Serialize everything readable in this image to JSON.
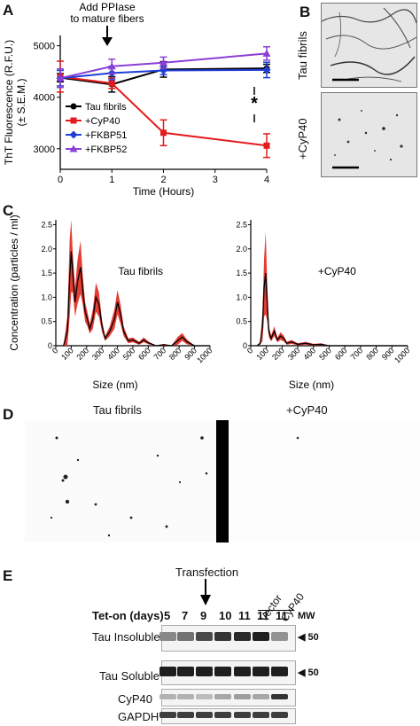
{
  "panels": {
    "A": "A",
    "B": "B",
    "C": "C",
    "D": "D",
    "E": "E"
  },
  "panelA": {
    "annotation": {
      "line1": "Add PPIase",
      "line2": "to mature fibers"
    },
    "asterisk": "*"
  },
  "panelB": {
    "labels": [
      "Tau fibrils",
      "+CyP40"
    ]
  },
  "panelD": {
    "labels": [
      "Tau fibrils",
      "+CyP40"
    ]
  },
  "panelE": {
    "transfection": "Transfection",
    "tet_on_label": "Tet-on (days)",
    "days": [
      "5",
      "7",
      "9",
      "10",
      "11",
      "11",
      "11"
    ],
    "vector_label": "Vector",
    "cyp40_label": "CyP40",
    "mw_label": "MW",
    "rows": [
      "Tau Insoluble",
      "Tau Soluble",
      "CyP40",
      "GAPDH"
    ],
    "mw_markers": [
      "50",
      "50"
    ],
    "band_intensity": {
      "tau_insoluble": [
        0.45,
        0.55,
        0.75,
        0.85,
        0.9,
        0.95,
        0.4
      ],
      "tau_soluble": [
        0.95,
        0.95,
        0.95,
        0.95,
        0.95,
        0.95,
        0.95
      ],
      "cyp40": [
        0.25,
        0.25,
        0.2,
        0.3,
        0.35,
        0.3,
        0.85
      ],
      "gapdh": [
        0.8,
        0.8,
        0.8,
        0.8,
        0.8,
        0.8,
        0.8
      ]
    }
  },
  "chart_data": [
    {
      "type": "line",
      "panel": "A",
      "xlabel": "Time (Hours)",
      "ylabel_line1": "ThT Fluorescence (R.F.U.)",
      "ylabel_line2": "(± S.E.M.)",
      "xlim": [
        0,
        4
      ],
      "ylim": [
        2600,
        5200
      ],
      "xticks": [
        0,
        1,
        2,
        3,
        4
      ],
      "yticks": [
        3000,
        4000,
        5000
      ],
      "legend_position": "bottom-left",
      "series": [
        {
          "name": "Tau fibrils",
          "color": "#000000",
          "marker": "circle",
          "x": [
            0,
            1,
            2,
            4
          ],
          "y": [
            4380,
            4250,
            4540,
            4560
          ],
          "err": [
            80,
            150,
            150,
            80
          ]
        },
        {
          "name": "+CyP40",
          "color": "#e41a1c",
          "marker": "square",
          "x": [
            0,
            1,
            2,
            4
          ],
          "y": [
            4400,
            4270,
            3310,
            3060
          ],
          "err": [
            300,
            100,
            250,
            230
          ]
        },
        {
          "name": "+FKBP51",
          "color": "#1f3fd6",
          "marker": "diamond",
          "x": [
            0,
            1,
            2,
            4
          ],
          "y": [
            4370,
            4470,
            4520,
            4530
          ],
          "err": [
            150,
            130,
            80,
            150
          ]
        },
        {
          "name": "+FKBP52",
          "color": "#8a3fd6",
          "marker": "triangle",
          "x": [
            0,
            1,
            2,
            4
          ],
          "y": [
            4370,
            4600,
            4670,
            4850
          ],
          "err": [
            180,
            140,
            110,
            130
          ]
        }
      ]
    },
    {
      "type": "area",
      "panel": "C-left",
      "title": "Tau fibrils",
      "ylabel": "Concentration (particles / ml)",
      "xlabel": "Size (nm)",
      "xlim": [
        0,
        1000
      ],
      "ylim": [
        0,
        2.6
      ],
      "xticks": [
        0,
        100,
        200,
        300,
        400,
        500,
        600,
        700,
        800,
        900,
        1000
      ],
      "yticks": [
        0,
        0.5,
        1.0,
        1.5,
        2.0,
        2.5
      ],
      "ytick_labels": [
        "0",
        "0.5",
        "1.0",
        "1.5",
        "2.0",
        "2.5"
      ],
      "x": [
        50,
        75,
        90,
        100,
        110,
        125,
        140,
        160,
        175,
        190,
        205,
        220,
        240,
        260,
        280,
        300,
        320,
        350,
        380,
        400,
        420,
        440,
        470,
        500,
        540,
        570,
        600,
        650,
        700,
        750,
        790,
        820,
        850,
        900,
        950,
        1000
      ],
      "y": [
        0,
        0.3,
        1.4,
        1.95,
        1.5,
        0.9,
        1.3,
        1.62,
        1.15,
        0.7,
        0.55,
        0.35,
        0.55,
        1.0,
        0.85,
        0.4,
        0.15,
        0.3,
        0.55,
        0.9,
        0.65,
        0.3,
        0.1,
        0.12,
        0.05,
        0.12,
        0.06,
        0,
        0.02,
        0,
        0.1,
        0.18,
        0.08,
        0,
        0,
        0
      ],
      "err": [
        0,
        0.3,
        0.8,
        0.85,
        0.4,
        0.3,
        0.45,
        0.55,
        0.3,
        0.2,
        0.15,
        0.1,
        0.2,
        0.3,
        0.25,
        0.12,
        0.05,
        0.1,
        0.2,
        0.25,
        0.2,
        0.1,
        0.05,
        0.05,
        0.03,
        0.05,
        0.03,
        0,
        0.02,
        0,
        0.08,
        0.08,
        0.05,
        0,
        0,
        0
      ],
      "line_color": "#000000",
      "band_color": "#e0281e"
    },
    {
      "type": "area",
      "panel": "C-right",
      "title": "+CyP40",
      "xlabel": "Size (nm)",
      "xlim": [
        0,
        1000
      ],
      "ylim": [
        0,
        2.6
      ],
      "xticks": [
        0,
        100,
        200,
        300,
        400,
        500,
        600,
        700,
        800,
        900,
        1000
      ],
      "yticks": [
        0,
        0.5,
        1.0,
        1.5,
        2.0,
        2.5
      ],
      "ytick_labels": [
        "0",
        "0.5",
        "1.0",
        "1.5",
        "2.0",
        "2.5"
      ],
      "x": [
        40,
        60,
        75,
        85,
        95,
        105,
        115,
        130,
        150,
        170,
        190,
        210,
        230,
        260,
        300,
        350,
        400,
        450,
        500,
        600,
        700,
        800,
        1000
      ],
      "y": [
        0,
        0.05,
        0.4,
        1.2,
        1.5,
        0.9,
        0.3,
        0.15,
        0.3,
        0.12,
        0.2,
        0.15,
        0.05,
        0.08,
        0.03,
        0.05,
        0.02,
        0.03,
        0,
        0,
        0,
        0,
        0
      ],
      "err": [
        0,
        0.03,
        0.3,
        0.6,
        0.85,
        0.4,
        0.12,
        0.06,
        0.1,
        0.05,
        0.08,
        0.06,
        0.03,
        0.04,
        0.02,
        0.03,
        0.02,
        0.02,
        0,
        0,
        0,
        0,
        0
      ],
      "line_color": "#000000",
      "band_color": "#e0281e"
    }
  ]
}
